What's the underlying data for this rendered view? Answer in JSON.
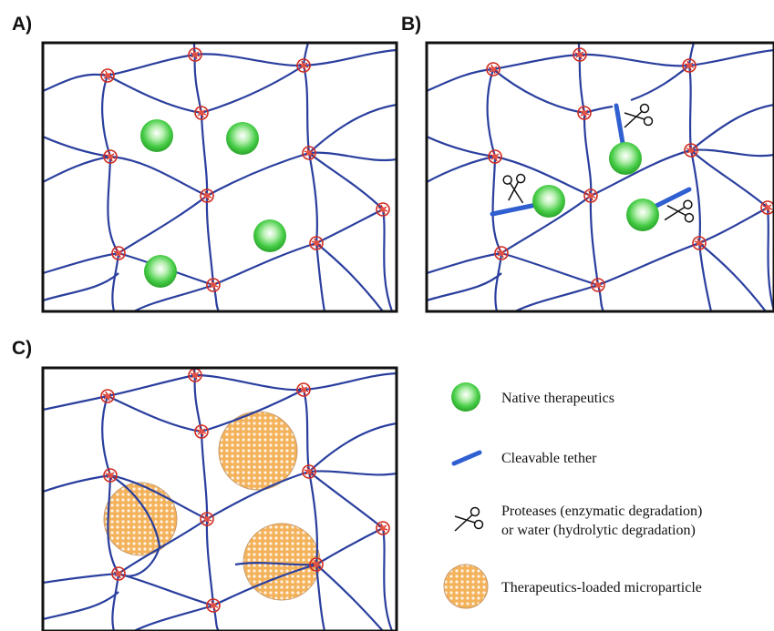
{
  "panels": {
    "a": {
      "label": "A)"
    },
    "b": {
      "label": "B)"
    },
    "c": {
      "label": "C)"
    }
  },
  "legend": {
    "native_therapeutics": "Native therapeutics",
    "cleavable_tether": "Cleavable tether",
    "protease_line1": "Proteases (enzymatic degradation)",
    "protease_line2": "or water (hydrolytic degradation)",
    "microparticle": "Therapeutics-loaded microparticle"
  },
  "colors": {
    "polymer_chain": "#2a3f9e",
    "crosslink": "#d02a1e",
    "therapeutic_green": "#3fcf3f",
    "tether_blue": "#2f5fd0",
    "microparticle_orange": "#f0a848"
  }
}
